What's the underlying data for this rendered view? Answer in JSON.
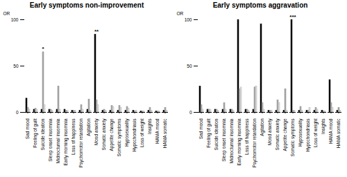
{
  "chart_data": [
    {
      "type": "bar",
      "title": "Early symptoms non-improvement",
      "ylabel": "OR",
      "categories": [
        "Sad mood",
        "Feeling of guilt",
        "Suicide ideation",
        "Sleep onset insomnia",
        "Midnocturnal insomnia",
        "Early morning insomnia",
        "Loss of happiness",
        "Psychomotor retardation",
        "Agitation",
        "Mood anxiety",
        "Somatic anxiety",
        "Appetite change",
        "Somatic symptoms",
        "Hyposexuality",
        "Hypochondriasis",
        "Loss of weight",
        "Insights",
        "HAMA mood",
        "HAMA somatic"
      ],
      "series": [
        {
          "color": "#000000",
          "values": [
            15,
            3,
            3,
            3,
            3,
            3,
            2,
            2,
            3,
            84,
            2,
            2,
            2,
            2,
            2,
            1,
            2,
            1,
            2
          ]
        },
        {
          "color": "#aaaaaa",
          "values": [
            5,
            4,
            65,
            3,
            28,
            2,
            2,
            8,
            14,
            13,
            3,
            7,
            7,
            6,
            1,
            1,
            5,
            1,
            5
          ]
        },
        {
          "color": "#dddddd",
          "values": [
            3,
            3,
            8,
            2,
            3,
            2,
            2,
            3,
            2,
            8,
            2,
            6,
            5,
            4,
            2,
            1,
            2,
            1,
            2
          ]
        }
      ],
      "annotations": [
        {
          "category": "Suicide ideation",
          "text": "*"
        },
        {
          "category": "Mood anxiety",
          "text": "**"
        }
      ],
      "ylim": [
        0,
        100
      ],
      "yticks": [
        0,
        50,
        100
      ],
      "grid": false
    },
    {
      "type": "bar",
      "title": "Early symptoms aggravation",
      "ylabel": "OR",
      "categories": [
        "Sad mood",
        "Feeling of guilt",
        "Suicide ideation",
        "Sleep onset insomnia",
        "Midnocturnal insomnia",
        "Early morning insomnia",
        "Loss of happiness",
        "Psychomotor retardation",
        "Agitation",
        "Mood anxiety",
        "Somatic anxiety",
        "Appetite change",
        "Somatic symptoms",
        "Hyposexuality",
        "Hypochondriasis",
        "Loss of weight",
        "Insights",
        "HAMA mood",
        "HAMA somatic"
      ],
      "series": [
        {
          "color": "#000000",
          "values": [
            28,
            3,
            3,
            3,
            3,
            100,
            3,
            3,
            95,
            2,
            2,
            2,
            100,
            2,
            2,
            2,
            2,
            35,
            2
          ]
        },
        {
          "color": "#aaaaaa",
          "values": [
            8,
            3,
            3,
            10,
            3,
            25,
            3,
            27,
            10,
            2,
            13,
            25,
            2,
            6,
            2,
            5,
            1,
            10,
            5
          ]
        },
        {
          "color": "#dddddd",
          "values": [
            3,
            3,
            2,
            3,
            2,
            27,
            2,
            28,
            3,
            2,
            10,
            2,
            2,
            2,
            5,
            3,
            1,
            5,
            2
          ]
        }
      ],
      "annotations": [
        {
          "category": "Somatic symptoms",
          "text": "***"
        }
      ],
      "ylim": [
        0,
        100
      ],
      "yticks": [
        0,
        50,
        100
      ],
      "grid": false
    }
  ]
}
